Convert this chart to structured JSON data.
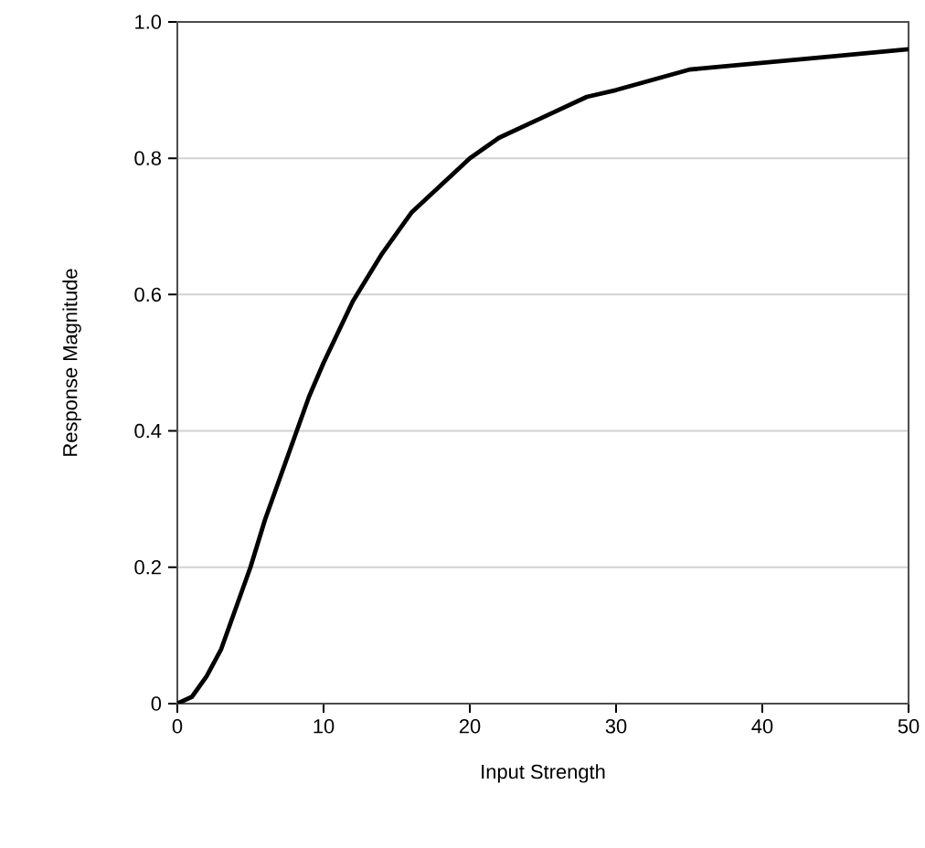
{
  "chart_data": {
    "type": "line",
    "xlabel": "Input Strength",
    "ylabel": "Response Magnitude",
    "x": [
      0,
      1,
      2,
      3,
      4,
      5,
      6,
      7,
      8,
      9,
      10,
      12,
      14,
      16,
      18,
      20,
      22,
      25,
      28,
      30,
      35,
      40,
      45,
      50
    ],
    "values": [
      0,
      0.01,
      0.04,
      0.08,
      0.14,
      0.2,
      0.27,
      0.33,
      0.39,
      0.45,
      0.5,
      0.59,
      0.66,
      0.72,
      0.76,
      0.8,
      0.83,
      0.86,
      0.89,
      0.9,
      0.93,
      0.94,
      0.95,
      0.96
    ],
    "color": "#000000",
    "xlim": [
      0,
      50
    ],
    "ylim": [
      0,
      1
    ],
    "xticks": [
      0,
      10,
      20,
      30,
      40,
      50
    ],
    "yticks": [
      0,
      {
        "value": 0.2,
        "label": "0.2"
      },
      {
        "value": 0.4,
        "label": "0.4"
      },
      {
        "value": 0.6,
        "label": "0.6"
      },
      {
        "value": 0.8,
        "label": "0.8"
      },
      {
        "value": 1,
        "label": "1.0"
      }
    ],
    "grid": "y",
    "marker": "none",
    "line_style": "solid"
  }
}
